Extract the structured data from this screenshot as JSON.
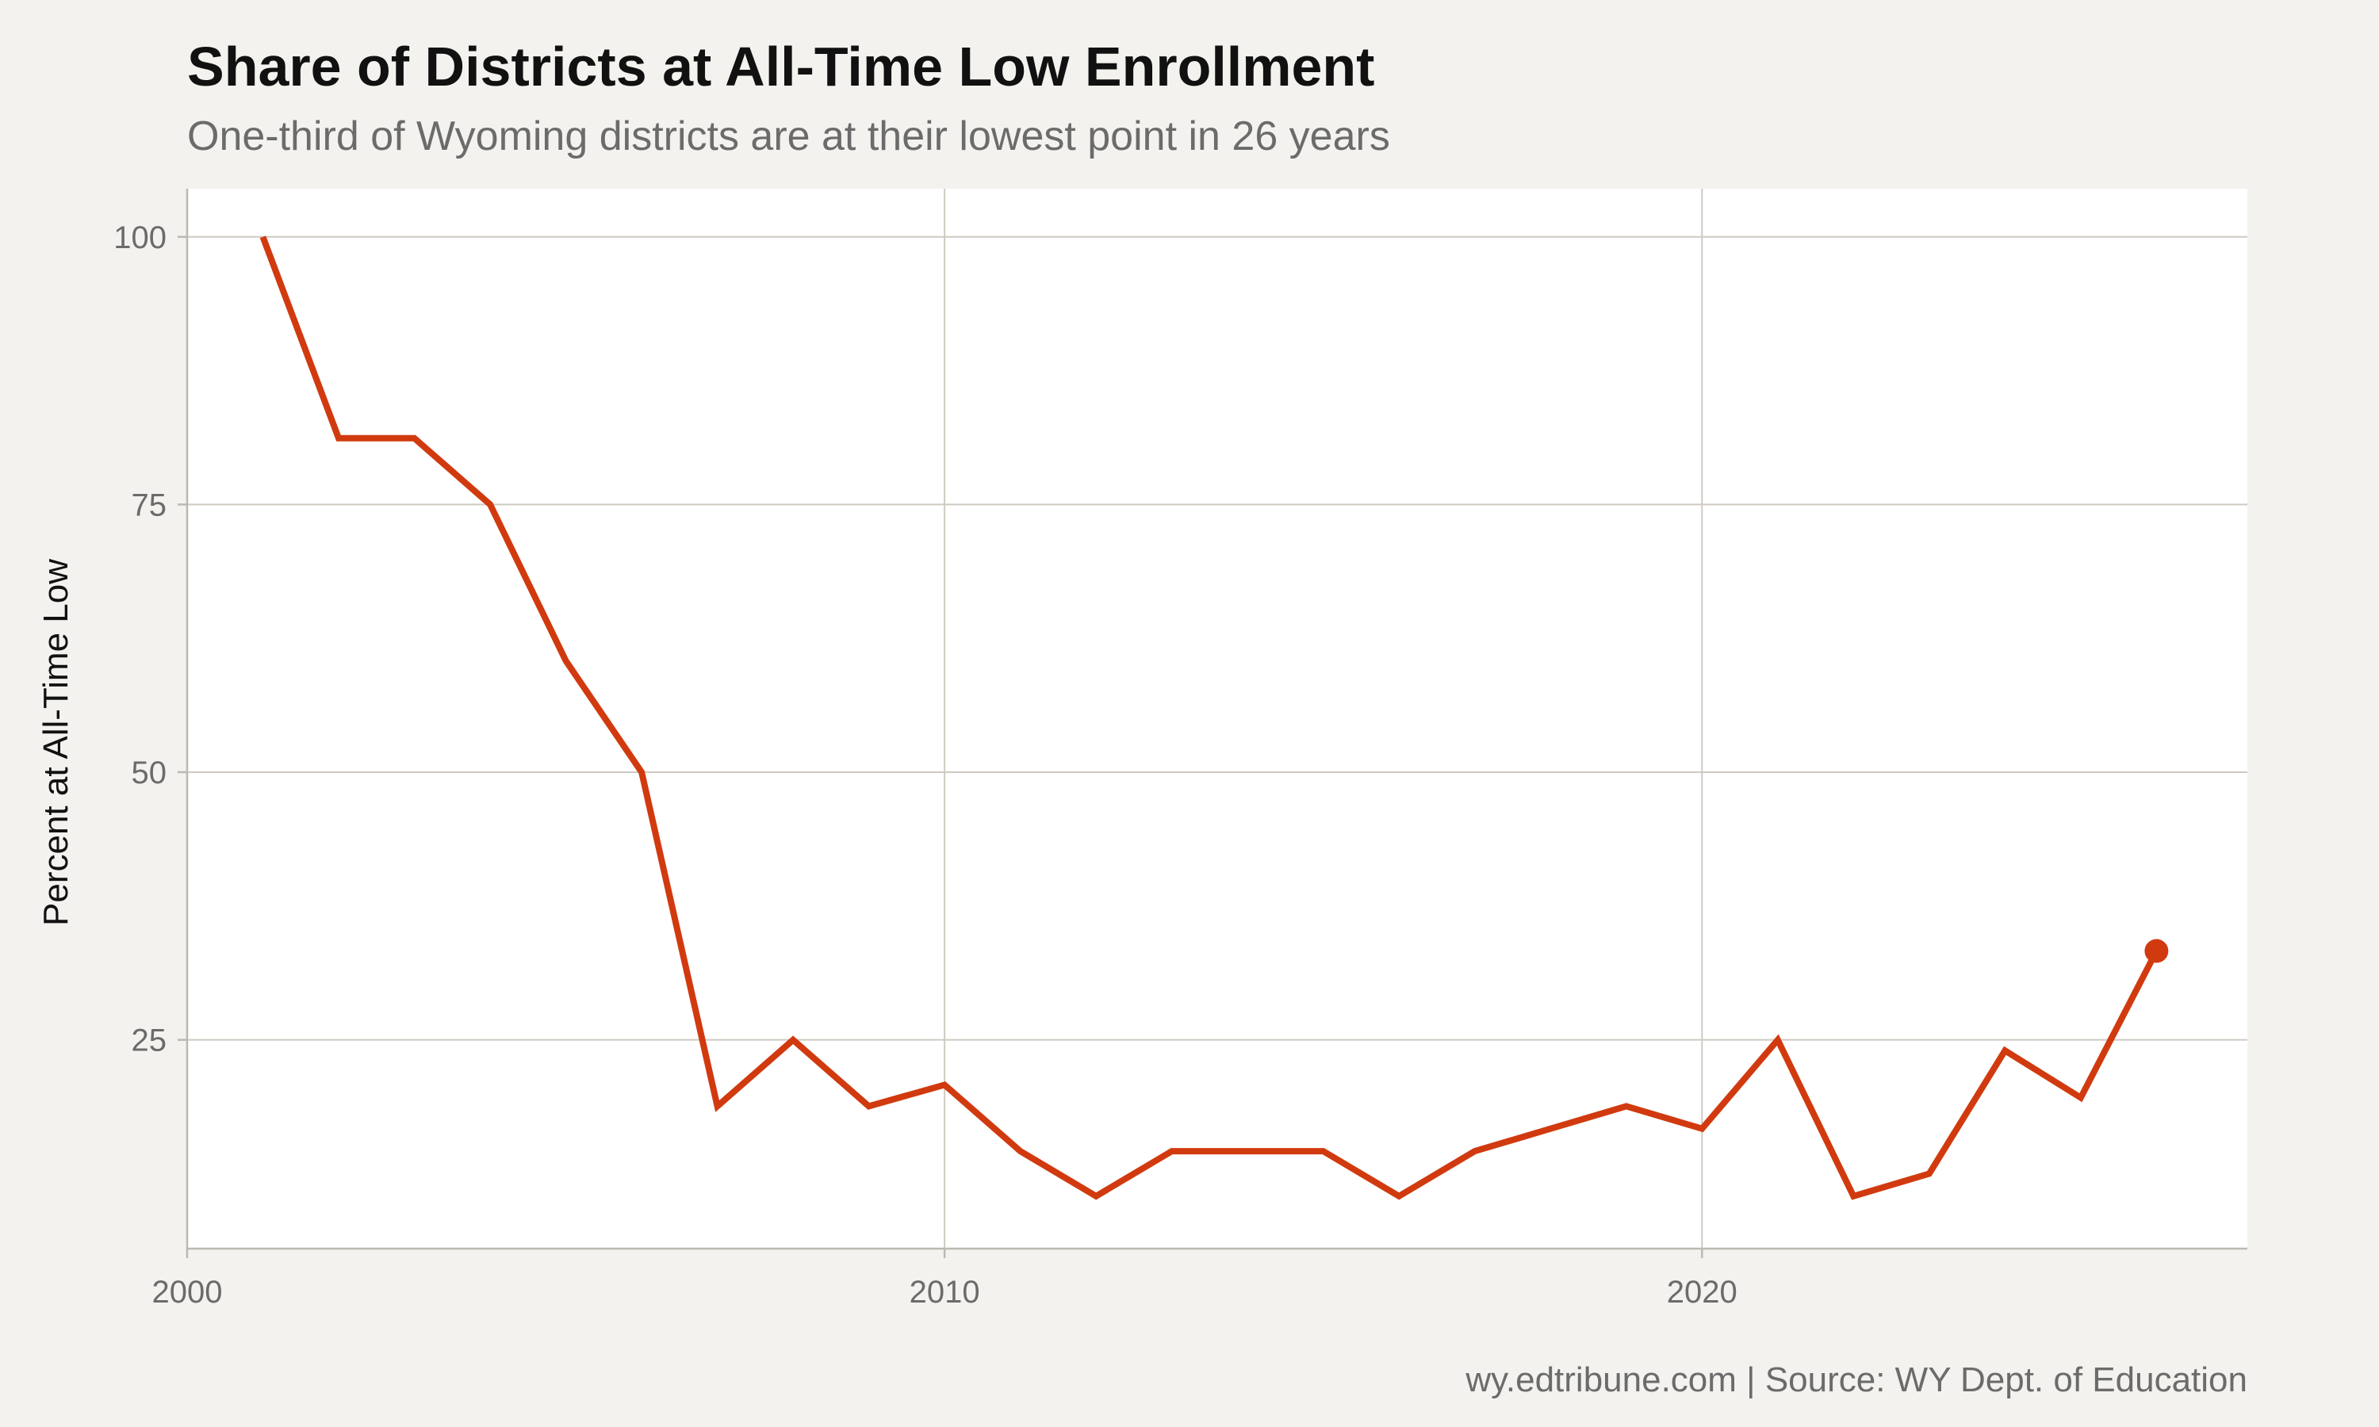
{
  "header": {
    "title": "Share of Districts at All-Time Low Enrollment",
    "subtitle": "One-third of Wyoming districts are at their lowest point in 26 years"
  },
  "footer": {
    "caption": "wy.edtribune.com | Source: WY Dept. of Education"
  },
  "colors": {
    "line": "#d13a0f",
    "panel": "#ffffff",
    "background": "#f4f2ee",
    "grid": "#cfcac2"
  },
  "chart_data": {
    "type": "line",
    "title": "Share of Districts at All-Time Low Enrollment",
    "subtitle": "One-third of Wyoming districts are at their lowest point in 26 years",
    "xlabel": "",
    "ylabel": "Percent at All-Time Low",
    "xlim": [
      2000,
      2027.2
    ],
    "ylim": [
      5.5,
      104.5
    ],
    "xticks": [
      2000,
      2010,
      2020
    ],
    "yticks": [
      25,
      50,
      75,
      100
    ],
    "grid": true,
    "legend": "none",
    "highlight_last_point": true,
    "series": [
      {
        "x": [
          2001,
          2002,
          2003,
          2004,
          2005,
          2006,
          2007,
          2008,
          2009,
          2010,
          2011,
          2012,
          2013,
          2014,
          2015,
          2016,
          2017,
          2018,
          2019,
          2020,
          2021,
          2022,
          2023,
          2024,
          2025,
          2026
        ],
        "values": [
          100,
          81.2,
          81.2,
          75,
          60.4,
          50,
          18.8,
          25,
          18.8,
          20.8,
          14.6,
          10.4,
          14.6,
          14.6,
          14.6,
          10.4,
          14.6,
          16.7,
          18.8,
          16.7,
          25,
          10.4,
          12.5,
          24,
          19.6,
          33.3
        ]
      }
    ]
  }
}
